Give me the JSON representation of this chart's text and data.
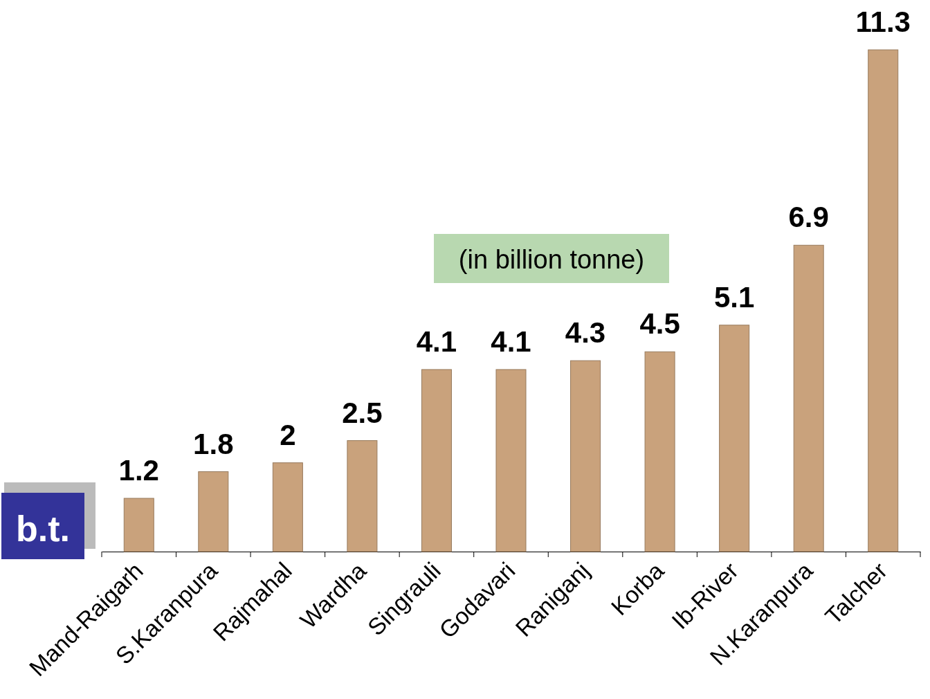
{
  "chart_data": {
    "type": "bar",
    "categories": [
      "Mand-Raigarh",
      "S.Karanpura",
      "Rajmahal",
      "Wardha",
      "Singrauli",
      "Godavari",
      "Raniganj",
      "Korba",
      "Ib-River",
      "N.Karanpura",
      "Talcher"
    ],
    "values": [
      1.2,
      1.8,
      2,
      2.5,
      4.1,
      4.1,
      4.3,
      4.5,
      5.1,
      6.9,
      11.3
    ],
    "color": "#c9a27c",
    "data_labels": true,
    "annotations": [
      "(in billion tonne)",
      "b.t."
    ]
  }
}
